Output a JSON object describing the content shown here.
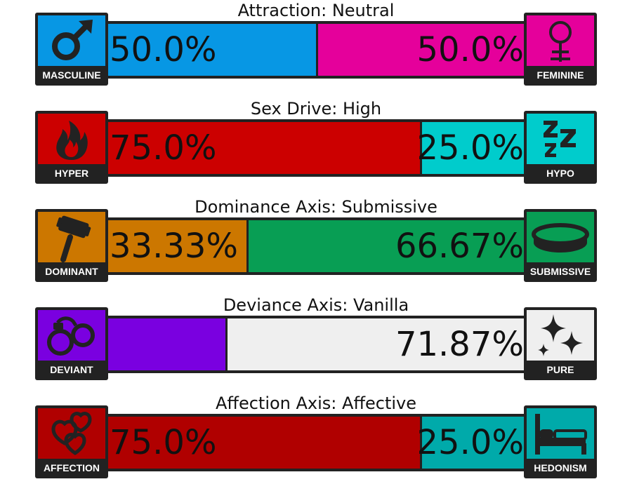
{
  "axes": [
    {
      "title": "Attraction: Neutral",
      "left": {
        "label": "MASCULINE",
        "icon": "male-symbol-icon",
        "color": "#0797e4",
        "percent_text": "50.0%",
        "fraction": 0.5
      },
      "right": {
        "label": "FEMININE",
        "icon": "female-symbol-icon",
        "color": "#e5009b",
        "percent_text": "50.0%"
      }
    },
    {
      "title": "Sex Drive: High",
      "left": {
        "label": "HYPER",
        "icon": "flame-icon",
        "color": "#cc0000",
        "percent_text": "75.0%",
        "fraction": 0.75
      },
      "right": {
        "label": "HYPO",
        "icon": "sleep-zzz-icon",
        "color": "#00cccc",
        "percent_text": "25.0%"
      }
    },
    {
      "title": "Dominance Axis: Submissive",
      "left": {
        "label": "DOMINANT",
        "icon": "gavel-icon",
        "color": "#cc7700",
        "percent_text": "33.33%",
        "fraction": 0.3333
      },
      "right": {
        "label": "SUBMISSIVE",
        "icon": "collar-icon",
        "color": "#089e54",
        "percent_text": "66.67%"
      }
    },
    {
      "title": "Deviance Axis: Vanilla",
      "left": {
        "label": "DEVIANT",
        "icon": "handcuffs-icon",
        "color": "#7a00e0",
        "percent_text": "",
        "fraction": 0.2813
      },
      "right": {
        "label": "PURE",
        "icon": "sparkles-icon",
        "color": "#efefef",
        "percent_text": "71.87%"
      }
    },
    {
      "title": "Affection Axis: Affective",
      "left": {
        "label": "AFFECTION",
        "icon": "hearts-icon",
        "color": "#b00000",
        "percent_text": "75.0%",
        "fraction": 0.75
      },
      "right": {
        "label": "HEDONISM",
        "icon": "bed-icon",
        "color": "#00aaaa",
        "percent_text": "25.0%"
      }
    }
  ]
}
